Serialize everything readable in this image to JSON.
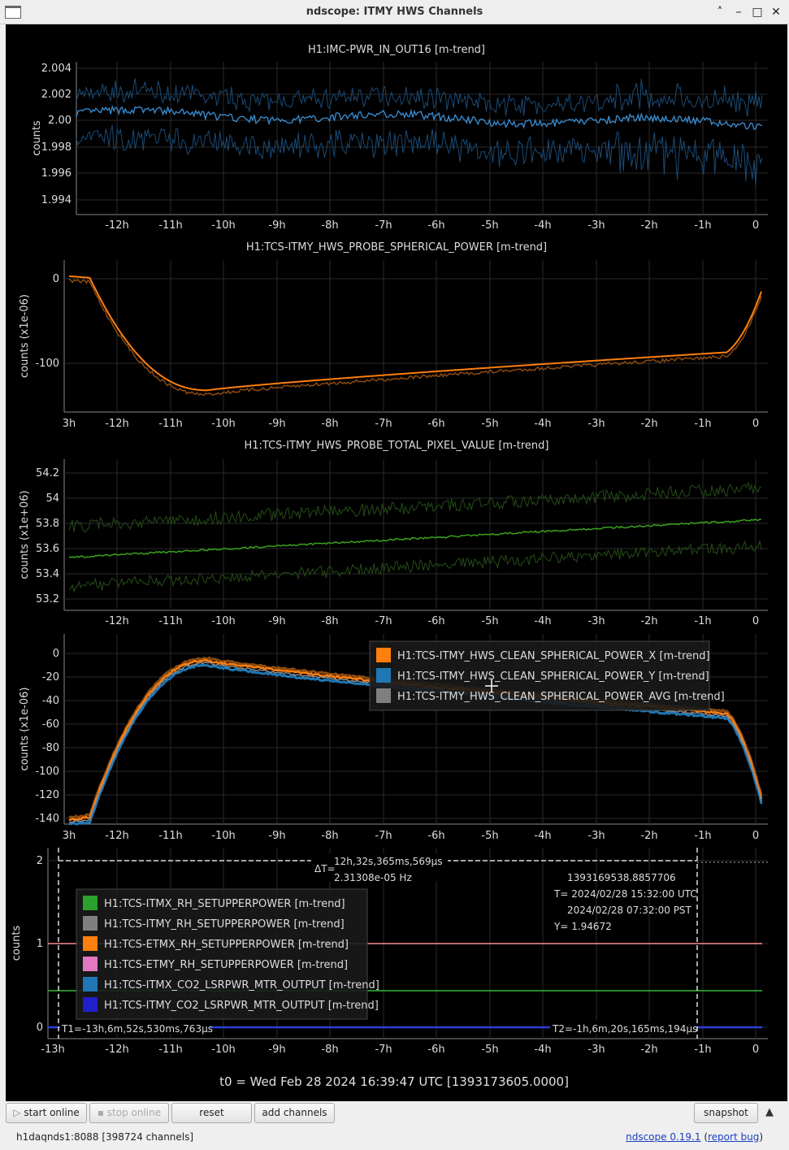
{
  "window": {
    "title": "ndscope: ITMY HWS Channels"
  },
  "x_ticks": [
    "-12h",
    "-11h",
    "-10h",
    "-9h",
    "-8h",
    "-7h",
    "-6h",
    "-5h",
    "-4h",
    "-3h",
    "-2h",
    "-1h",
    "0"
  ],
  "panels": [
    {
      "title": "H1:IMC-PWR_IN_OUT16 [m-trend]",
      "ylabel": "counts",
      "yticks": [
        "2.004",
        "2.002",
        "2.00",
        "1.998",
        "1.996",
        "1.994"
      ],
      "x_first_label": ""
    },
    {
      "title": "H1:TCS-ITMY_HWS_PROBE_SPHERICAL_POWER [m-trend]",
      "ylabel": "counts (x1e-06)",
      "yticks": [
        "0",
        "-100"
      ],
      "x_first_label": "3h"
    },
    {
      "title": "H1:TCS-ITMY_HWS_PROBE_TOTAL_PIXEL_VALUE [m-trend]",
      "ylabel": "counts (x1e+06)",
      "yticks": [
        "54.2",
        "54",
        "53.8",
        "53.6",
        "53.4",
        "53.2"
      ],
      "x_first_label": ""
    },
    {
      "title": "",
      "ylabel": "counts (x1e-06)",
      "yticks": [
        "0",
        "-20",
        "-40",
        "-60",
        "-80",
        "-100",
        "-120",
        "-140"
      ],
      "x_first_label": "3h",
      "legend": [
        {
          "label": "H1:TCS-ITMY_HWS_CLEAN_SPHERICAL_POWER_X [m-trend]",
          "color": "#ff7f0e"
        },
        {
          "label": "H1:TCS-ITMY_HWS_CLEAN_SPHERICAL_POWER_Y [m-trend]",
          "color": "#1f77b4"
        },
        {
          "label": "H1:TCS-ITMY_HWS_CLEAN_SPHERICAL_POWER_AVG [m-trend]",
          "color": "#7f7f7f"
        }
      ]
    },
    {
      "title": "",
      "ylabel": "counts",
      "yticks": [
        "2",
        "1",
        "0"
      ],
      "x_first_label": "-13h",
      "legend": [
        {
          "label": "H1:TCS-ITMX_RH_SETUPPERPOWER [m-trend]",
          "color": "#2ca02c"
        },
        {
          "label": "H1:TCS-ITMY_RH_SETUPPERPOWER [m-trend]",
          "color": "#7f7f7f"
        },
        {
          "label": "H1:TCS-ETMX_RH_SETUPPERPOWER [m-trend]",
          "color": "#ff7f0e"
        },
        {
          "label": "H1:TCS-ETMY_RH_SETUPPERPOWER [m-trend]",
          "color": "#e377c2"
        },
        {
          "label": "H1:TCS-ITMX_CO2_LSRPWR_MTR_OUTPUT [m-trend]",
          "color": "#1f77b4"
        },
        {
          "label": "H1:TCS-ITMY_CO2_LSRPWR_MTR_OUTPUT [m-trend]",
          "color": "#2020c8"
        }
      ],
      "cursors": {
        "dt_label": "ΔT=",
        "dt": "12h,32s,365ms,569µs",
        "freq": "2.31308e-05 Hz",
        "gps": "1393169538.8857706",
        "t_utc": "T= 2024/02/28 15:32:00 UTC",
        "t_pst": "2024/02/28 07:32:00 PST",
        "y": "Y= 1.94672",
        "t1": "T1=-13h,6m,52s,530ms,763µs",
        "t2": "T2=-1h,6m,20s,165ms,194µs"
      }
    }
  ],
  "t0_label": "t0 = Wed Feb 28 2024 16:39:47 UTC [1393173605.0000]",
  "toolbar": {
    "start_online": "start online",
    "stop_online": "stop online",
    "reset": "reset",
    "add_channels": "add channels",
    "snapshot": "snapshot"
  },
  "status": {
    "server": "h1daqnds1:8088  [398724 channels]",
    "version_link": "ndscope 0.19.1",
    "report_bug": "report bug"
  },
  "colors": {
    "imc": "#3a8fd4",
    "imc_band": "#1a4a75",
    "orange": "#ff7f0e",
    "green": "#39a11c",
    "green_band": "#254d16",
    "blue": "#1f77b4"
  }
}
